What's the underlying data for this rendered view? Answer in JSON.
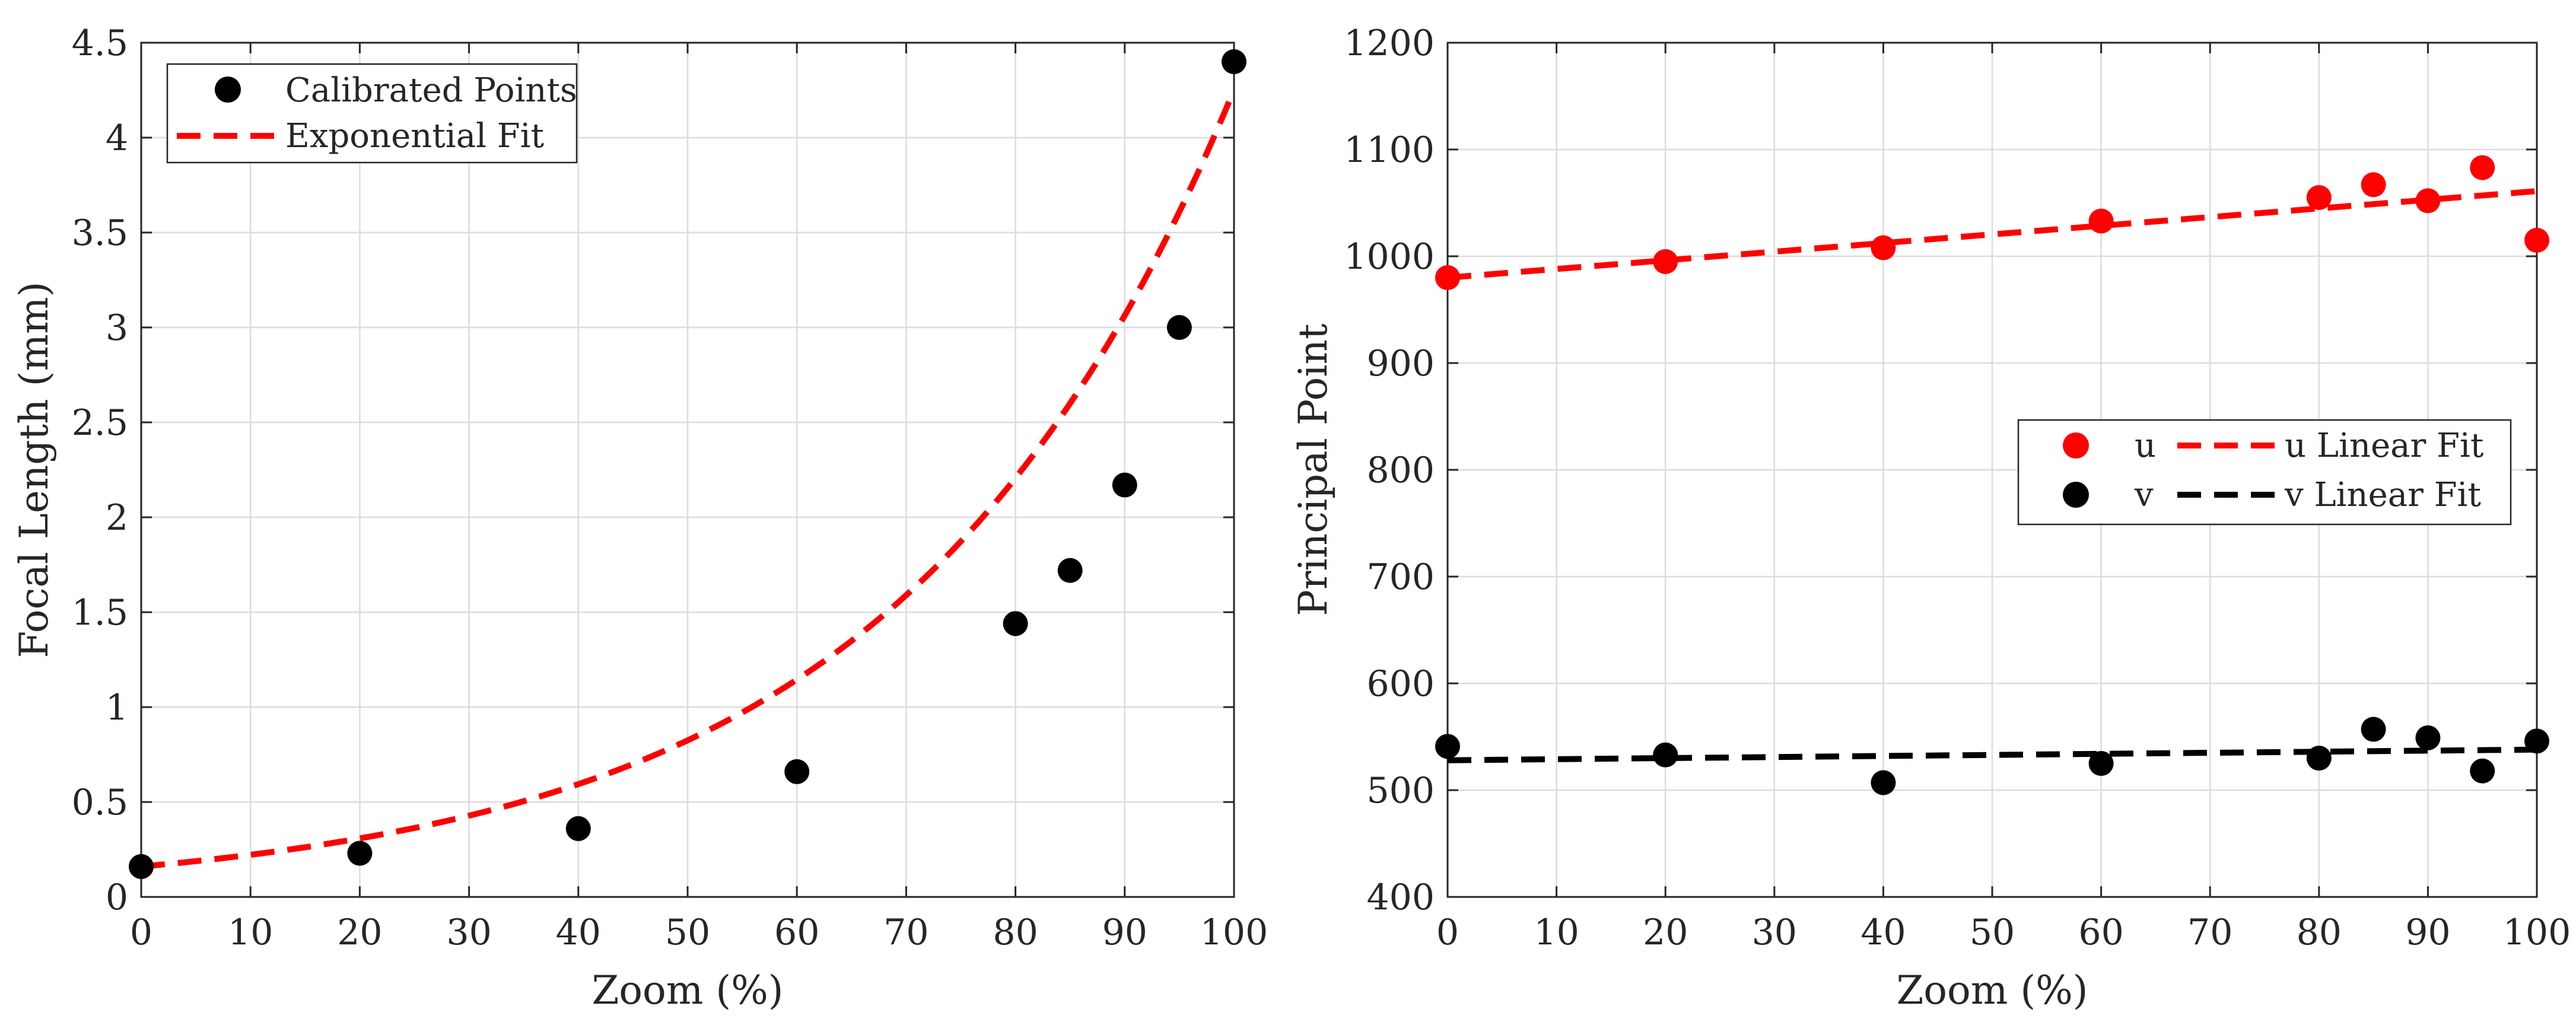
{
  "chart_data": [
    {
      "type": "scatter",
      "xlabel": "Zoom (%)",
      "ylabel": "Focal Length (mm)",
      "xlim": [
        0,
        100
      ],
      "ylim": [
        0,
        4.5
      ],
      "xticks": [
        "0",
        "10",
        "20",
        "30",
        "40",
        "50",
        "60",
        "70",
        "80",
        "90",
        "100"
      ],
      "yticks": [
        "0",
        "0.5",
        "1",
        "1.5",
        "2",
        "2.5",
        "3",
        "3.5",
        "4",
        "4.5"
      ],
      "grid": true,
      "legend_position": "top-left",
      "series": [
        {
          "name": "Calibrated Points",
          "style": "markers",
          "color": "#000000",
          "x": [
            0,
            20,
            40,
            60,
            80,
            85,
            90,
            95,
            100
          ],
          "y": [
            0.16,
            0.23,
            0.36,
            0.66,
            1.44,
            1.72,
            2.17,
            3.0,
            4.4
          ]
        },
        {
          "name": "Exponential Fit",
          "style": "dashed-line",
          "color": "#ff0000",
          "fit": "exponential",
          "a": 0.16,
          "b": 0.0328
        }
      ]
    },
    {
      "type": "scatter",
      "xlabel": "Zoom (%)",
      "ylabel": "Principal Point",
      "xlim": [
        0,
        100
      ],
      "ylim": [
        400,
        1200
      ],
      "xticks": [
        "0",
        "10",
        "20",
        "30",
        "40",
        "50",
        "60",
        "70",
        "80",
        "90",
        "100"
      ],
      "yticks": [
        "400",
        "500",
        "600",
        "700",
        "800",
        "900",
        "1000",
        "1100",
        "1200"
      ],
      "grid": true,
      "legend_position": "right",
      "series": [
        {
          "name": "u",
          "style": "markers",
          "color": "#ff0000",
          "x": [
            0,
            20,
            40,
            60,
            80,
            85,
            90,
            95,
            100
          ],
          "y": [
            980,
            995,
            1008,
            1033,
            1055,
            1067,
            1052,
            1083,
            1015
          ]
        },
        {
          "name": "u Linear Fit",
          "style": "dashed-line",
          "color": "#ff0000",
          "x": [
            0,
            100
          ],
          "y": [
            980,
            1061
          ]
        },
        {
          "name": "v",
          "style": "markers",
          "color": "#000000",
          "x": [
            0,
            20,
            40,
            60,
            80,
            85,
            90,
            95,
            100
          ],
          "y": [
            541,
            533,
            507,
            525,
            530,
            557,
            549,
            518,
            546
          ]
        },
        {
          "name": "v Linear Fit",
          "style": "dashed-line",
          "color": "#000000",
          "x": [
            0,
            100
          ],
          "y": [
            528,
            538
          ]
        }
      ]
    }
  ]
}
